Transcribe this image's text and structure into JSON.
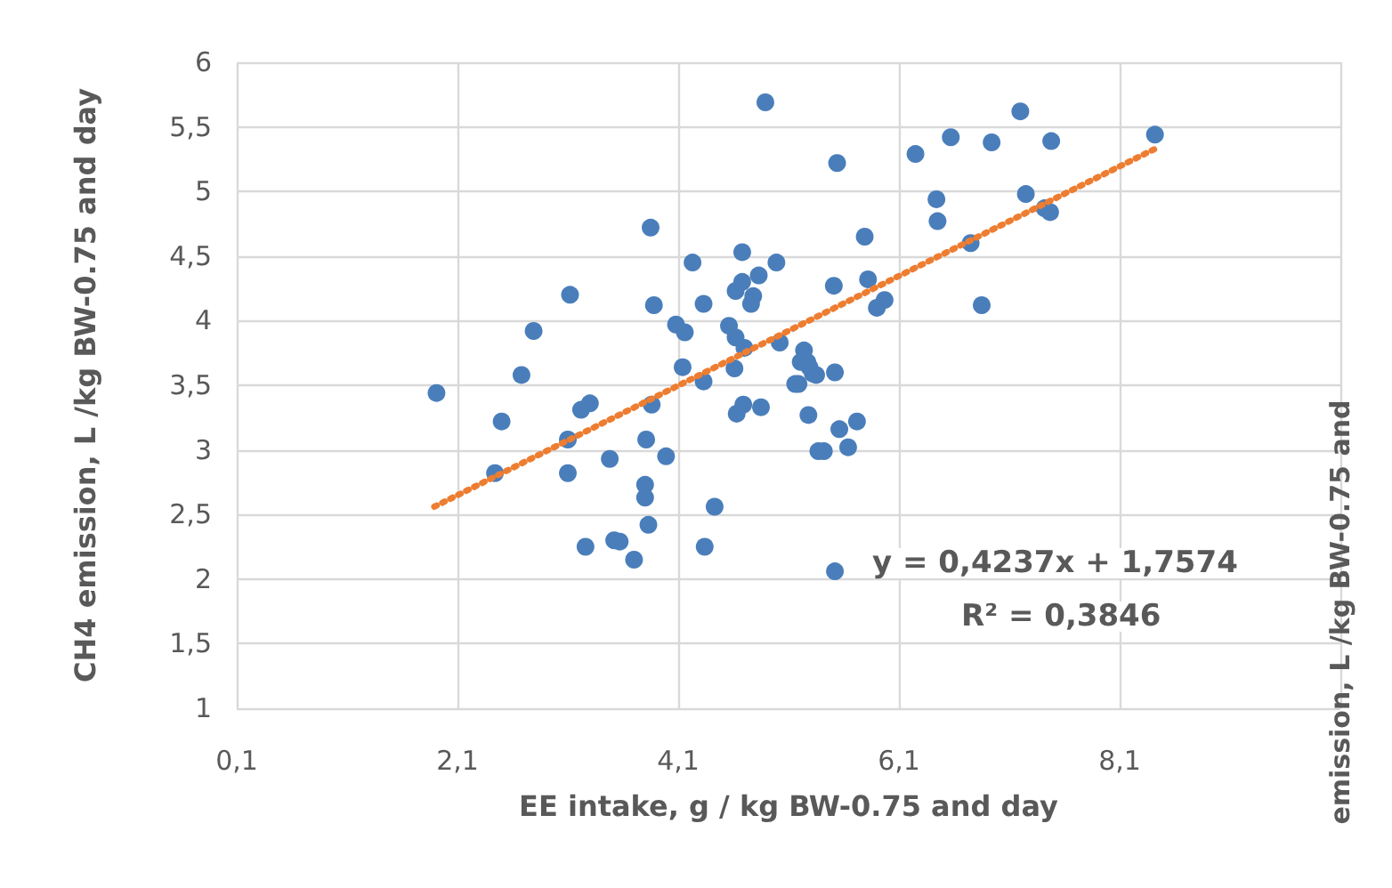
{
  "chart_data": {
    "type": "scatter",
    "xlabel": "EE intake, g / kg BW-0.75 and day",
    "ylabel": "CH4 emission, L /kg BW-0.75 and day",
    "xlim": [
      0.1,
      10.1
    ],
    "xticks": [
      {
        "value": 0.1,
        "label": "0,1"
      },
      {
        "value": 2.1,
        "label": "2,1"
      },
      {
        "value": 4.1,
        "label": "4,1"
      },
      {
        "value": 6.1,
        "label": "6,1"
      },
      {
        "value": 8.1,
        "label": "8,1"
      },
      {
        "value": 10.1,
        "label": null
      }
    ],
    "ylim": [
      1,
      6
    ],
    "yticks": [
      1,
      {
        "value": 1.5,
        "label": "1,5"
      },
      2,
      {
        "value": 2.5,
        "label": "2,5"
      },
      3,
      {
        "value": 3.5,
        "label": "3,5"
      },
      4,
      {
        "value": 4.5,
        "label": "4,5"
      },
      5,
      {
        "value": 5.5,
        "label": "5,5"
      },
      6
    ],
    "grid": true,
    "series": [
      {
        "color": "#4a7ebb",
        "marker": "circle",
        "x": [
          4.89,
          3.85,
          4.23,
          4.68,
          4.99,
          4.83,
          4.68,
          4.62,
          4.78,
          4.76,
          3.12,
          3.88,
          4.33,
          2.79,
          4.08,
          4.16,
          4.56,
          4.62,
          4.7,
          5.02,
          5.24,
          5.27,
          5.32,
          5.19,
          4.61,
          4.14,
          4.33,
          2.68,
          1.91,
          3.22,
          3.3,
          3.86,
          2.5,
          4.63,
          4.69,
          4.85,
          5.28,
          3.1,
          3.81,
          3.48,
          3.99,
          2.44,
          3.1,
          3.8,
          3.8,
          3.83,
          4.43,
          3.26,
          3.52,
          3.57,
          3.7,
          4.34,
          5.37,
          7.2,
          8.42,
          6.57,
          6.94,
          7.48,
          6.25,
          5.54,
          6.44,
          7.25,
          6.45,
          7.47,
          7.42,
          6.75,
          5.79,
          5.82,
          5.51,
          5.97,
          5.9,
          6.85,
          5.21,
          5.29,
          5.35,
          5.16,
          5.52,
          5.56,
          5.72,
          5.42,
          5.64,
          5.52
        ],
        "values": [
          5.69,
          4.72,
          4.45,
          4.53,
          4.45,
          4.35,
          4.3,
          4.23,
          4.19,
          4.13,
          4.2,
          4.12,
          4.13,
          3.92,
          3.97,
          3.91,
          3.96,
          3.87,
          3.79,
          3.83,
          3.77,
          3.68,
          3.59,
          3.51,
          3.63,
          3.64,
          3.53,
          3.58,
          3.44,
          3.31,
          3.36,
          3.35,
          3.22,
          3.28,
          3.35,
          3.33,
          3.27,
          3.08,
          3.08,
          2.93,
          2.95,
          2.82,
          2.82,
          2.73,
          2.63,
          2.42,
          2.56,
          2.25,
          2.3,
          2.29,
          2.15,
          2.25,
          2.99,
          5.62,
          5.44,
          5.42,
          5.38,
          5.39,
          5.29,
          5.22,
          4.94,
          4.98,
          4.77,
          4.84,
          4.87,
          4.6,
          4.65,
          4.32,
          4.27,
          4.16,
          4.1,
          4.12,
          3.68,
          3.64,
          3.58,
          3.51,
          3.6,
          3.16,
          3.22,
          2.99,
          3.02,
          2.06
        ]
      },
      {
        "type": "line",
        "color": "#ed7d31",
        "line_style": "dotted",
        "marker": "none",
        "x": [
          1.89,
          8.42
        ],
        "values": [
          2.56,
          5.33
        ]
      }
    ],
    "annotations": [
      "y = 0,4237x + 1,7574",
      "R² = 0,3846",
      "emission, L /kg BW-0.75 and"
    ]
  }
}
